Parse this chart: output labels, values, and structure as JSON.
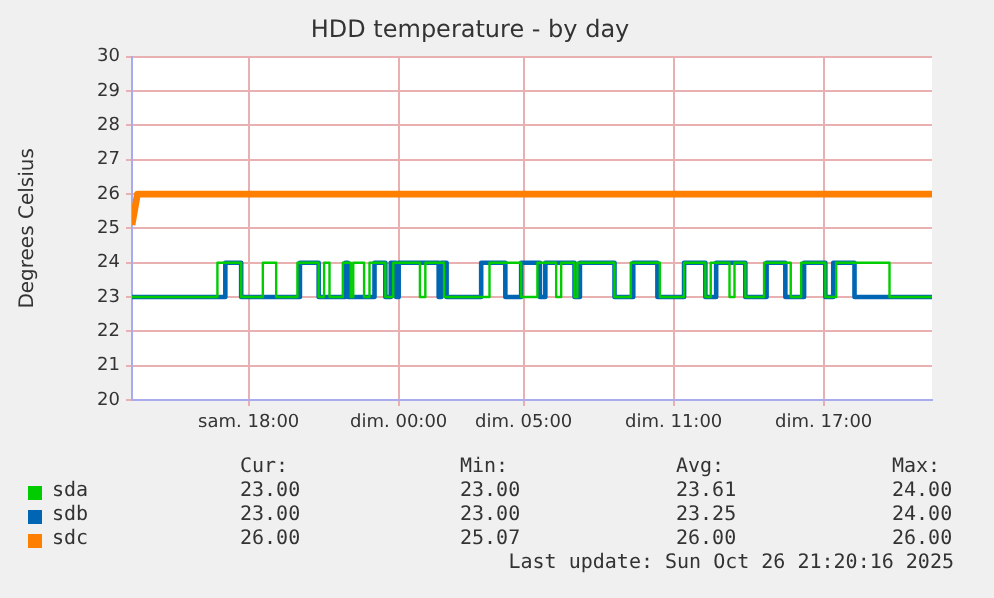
{
  "chart_data": {
    "type": "step",
    "title": "HDD temperature - by day",
    "ylabel": "Degrees Celsius",
    "xlim": [
      "2025-10-25T13:20",
      "2025-10-26T21:20"
    ],
    "xticks": [
      {
        "value": "2025-10-25T18:00",
        "label": "sam. 18:00"
      },
      {
        "value": "2025-10-26T00:00",
        "label": "dim. 00:00"
      },
      {
        "value": "2025-10-26T05:00",
        "label": "dim. 05:00"
      },
      {
        "value": "2025-10-26T11:00",
        "label": "dim. 11:00"
      },
      {
        "value": "2025-10-26T17:00",
        "label": "dim. 17:00"
      }
    ],
    "ylim": [
      20,
      30
    ],
    "yticks": [
      20,
      21,
      22,
      23,
      24,
      25,
      26,
      27,
      28,
      29,
      30
    ],
    "grid": true,
    "legend": "bottom",
    "series": [
      {
        "name": "sda",
        "color": "#00cc00",
        "x": [
          "2025-10-25T13:20",
          "2025-10-25T16:45",
          "2025-10-25T17:42",
          "2025-10-25T18:34",
          "2025-10-25T19:06",
          "2025-10-25T19:57",
          "2025-10-25T20:48",
          "2025-10-25T21:01",
          "2025-10-25T21:14",
          "2025-10-25T21:46",
          "2025-10-25T22:05",
          "2025-10-25T22:11",
          "2025-10-25T22:37",
          "2025-10-25T22:50",
          "2025-10-25T23:28",
          "2025-10-25T23:47",
          "2025-10-26T00:51",
          "2025-10-26T01:04",
          "2025-10-26T01:49",
          "2025-10-26T03:38",
          "2025-10-26T04:54",
          "2025-10-26T05:33",
          "2025-10-26T06:18",
          "2025-10-26T06:30",
          "2025-10-26T07:02",
          "2025-10-26T07:09",
          "2025-10-26T08:38",
          "2025-10-26T09:17",
          "2025-10-26T10:27",
          "2025-10-26T11:25",
          "2025-10-26T12:16",
          "2025-10-26T12:29",
          "2025-10-26T13:14",
          "2025-10-26T13:26",
          "2025-10-26T13:52",
          "2025-10-26T14:37",
          "2025-10-26T15:41",
          "2025-10-26T16:06",
          "2025-10-26T17:04",
          "2025-10-26T17:30",
          "2025-10-26T19:38",
          "2025-10-26T21:20"
        ],
        "values": [
          23,
          24,
          23,
          24,
          23,
          24,
          23,
          24,
          23,
          24,
          23,
          24,
          23,
          24,
          23,
          24,
          23,
          24,
          23,
          24,
          23,
          24,
          23,
          24,
          23,
          24,
          23,
          24,
          23,
          24,
          23,
          24,
          23,
          24,
          23,
          24,
          23,
          24,
          23,
          24,
          23,
          23
        ]
      },
      {
        "name": "sdb",
        "color": "#0066b3",
        "x": [
          "2025-10-25T13:20",
          "2025-10-25T17:04",
          "2025-10-25T17:42",
          "2025-10-25T20:03",
          "2025-10-25T20:48",
          "2025-10-25T21:52",
          "2025-10-25T21:58",
          "2025-10-25T23:02",
          "2025-10-25T23:28",
          "2025-10-25T23:41",
          "2025-10-25T23:54",
          "2025-10-26T00:00",
          "2025-10-26T01:36",
          "2025-10-26T01:42",
          "2025-10-26T01:55",
          "2025-10-26T03:18",
          "2025-10-26T04:16",
          "2025-10-26T04:54",
          "2025-10-26T05:39",
          "2025-10-26T05:52",
          "2025-10-26T07:02",
          "2025-10-26T07:15",
          "2025-10-26T08:38",
          "2025-10-26T09:23",
          "2025-10-26T10:21",
          "2025-10-26T11:25",
          "2025-10-26T12:16",
          "2025-10-26T12:42",
          "2025-10-26T13:52",
          "2025-10-26T14:43",
          "2025-10-26T15:28",
          "2025-10-26T16:13",
          "2025-10-26T17:04",
          "2025-10-26T17:23",
          "2025-10-26T18:14",
          "2025-10-26T21:20"
        ],
        "values": [
          23,
          24,
          23,
          24,
          23,
          24,
          23,
          24,
          23,
          24,
          23,
          24,
          23,
          24,
          23,
          24,
          23,
          24,
          23,
          24,
          23,
          24,
          23,
          24,
          23,
          24,
          23,
          24,
          23,
          24,
          23,
          24,
          23,
          24,
          23,
          23
        ]
      },
      {
        "name": "sdc",
        "color": "#ff8000",
        "type": "line",
        "x": [
          "2025-10-25T13:20",
          "2025-10-25T13:33",
          "2025-10-26T21:20"
        ],
        "values": [
          25.1,
          26,
          26
        ]
      }
    ],
    "annotations": [
      "Cur:",
      "Min:",
      "Avg:",
      "Max:",
      "23.00",
      "23.00",
      "23.61",
      "24.00",
      "23.00",
      "23.00",
      "23.25",
      "24.00",
      "26.00",
      "25.07",
      "26.00",
      "26.00",
      "Last update: Sun Oct 26 21:20:16 2025"
    ]
  }
}
